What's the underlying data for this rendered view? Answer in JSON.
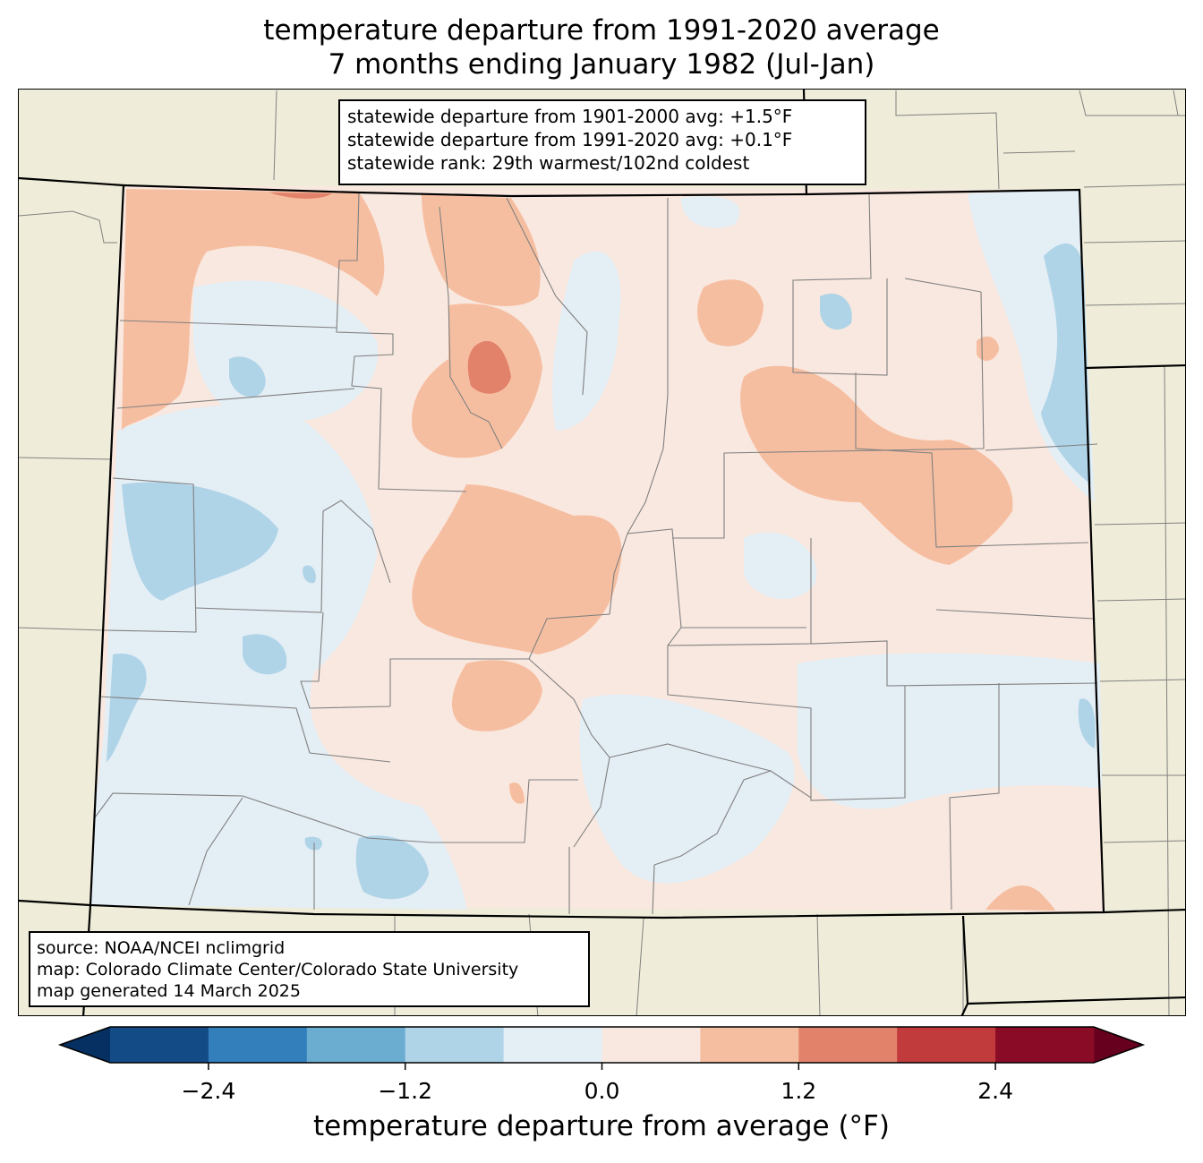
{
  "title": {
    "line1": "temperature departure from 1991-2020 average",
    "line2": "7 months ending January 1982 (Jul-Jan)"
  },
  "stats": {
    "line1": "statewide departure from 1901-2000 avg: +1.5°F",
    "line2": "statewide departure from 1991-2020 avg: +0.1°F",
    "line3": "statewide rank: 29th warmest/102nd coldest"
  },
  "source": {
    "line1": "source: NOAA/NCEI nclimgrid",
    "line2": "map: Colorado Climate Center/Colorado State University",
    "line3": "map generated 14 March 2025"
  },
  "colorbar": {
    "label": "temperature departure from average (°F)",
    "ticks": [
      "−2.4",
      "−1.2",
      "0.0",
      "1.2",
      "2.4"
    ],
    "bins": [
      {
        "from": -3.0,
        "to": -2.4,
        "color": "#134b87"
      },
      {
        "from": -2.4,
        "to": -1.8,
        "color": "#327fbb"
      },
      {
        "from": -1.8,
        "to": -1.2,
        "color": "#6bacd1"
      },
      {
        "from": -1.2,
        "to": -0.6,
        "color": "#b0d4e7"
      },
      {
        "from": -0.6,
        "to": 0.0,
        "color": "#e4eef5"
      },
      {
        "from": 0.0,
        "to": 0.6,
        "color": "#f9e8df"
      },
      {
        "from": 0.6,
        "to": 1.2,
        "color": "#f6bea1"
      },
      {
        "from": 1.2,
        "to": 1.8,
        "color": "#e3826a"
      },
      {
        "from": 1.8,
        "to": 2.4,
        "color": "#c13b3c"
      },
      {
        "from": 2.4,
        "to": 3.0,
        "color": "#8a0b25"
      }
    ],
    "under_color": "#053061",
    "over_color": "#67001f"
  },
  "colors": {
    "background_land": "#efedd9",
    "neutral_warm": "#f9e8df",
    "neutral_cool": "#e4eef5",
    "light_blue": "#b0d4e7",
    "light_red": "#f6bea1",
    "medium_red": "#e3826a"
  }
}
